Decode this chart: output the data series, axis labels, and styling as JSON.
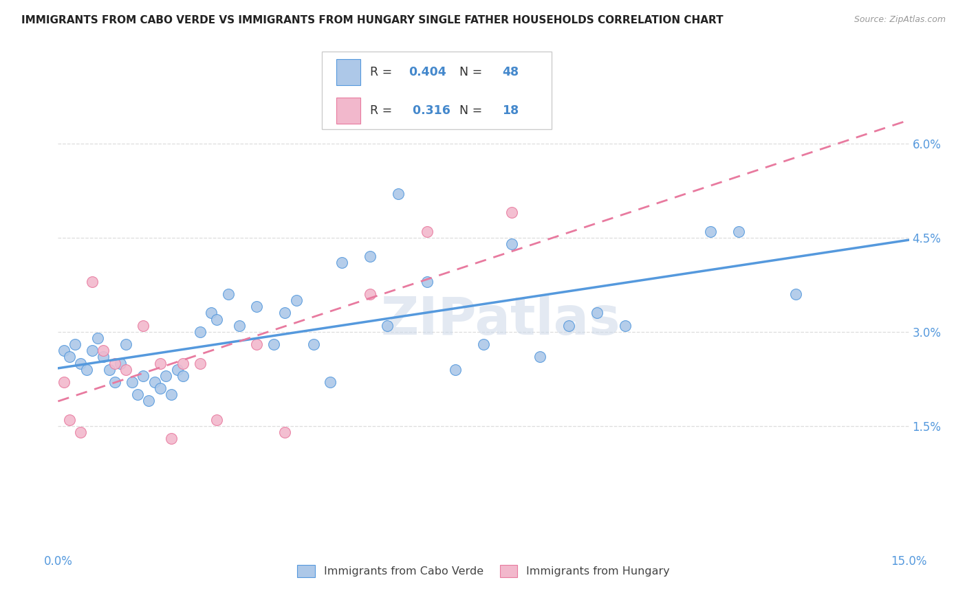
{
  "title": "IMMIGRANTS FROM CABO VERDE VS IMMIGRANTS FROM HUNGARY SINGLE FATHER HOUSEHOLDS CORRELATION CHART",
  "source": "Source: ZipAtlas.com",
  "ylabel": "Single Father Households",
  "xlim": [
    0,
    0.15
  ],
  "ylim": [
    -0.005,
    0.075
  ],
  "cabo_verde_R": "0.404",
  "cabo_verde_N": "48",
  "hungary_R": "0.316",
  "hungary_N": "18",
  "cabo_verde_color": "#adc8e8",
  "hungary_color": "#f2b8cc",
  "cabo_verde_line_color": "#5599dd",
  "hungary_line_color": "#e87a9f",
  "legend_r_color": "#4488cc",
  "cabo_verde_x": [
    0.001,
    0.002,
    0.003,
    0.004,
    0.005,
    0.006,
    0.007,
    0.008,
    0.009,
    0.01,
    0.011,
    0.012,
    0.013,
    0.014,
    0.015,
    0.016,
    0.017,
    0.018,
    0.019,
    0.02,
    0.021,
    0.022,
    0.025,
    0.027,
    0.028,
    0.03,
    0.032,
    0.035,
    0.038,
    0.04,
    0.042,
    0.045,
    0.048,
    0.05,
    0.055,
    0.058,
    0.06,
    0.065,
    0.07,
    0.075,
    0.08,
    0.085,
    0.09,
    0.095,
    0.1,
    0.115,
    0.12,
    0.13
  ],
  "cabo_verde_y": [
    0.027,
    0.026,
    0.028,
    0.025,
    0.024,
    0.027,
    0.029,
    0.026,
    0.024,
    0.022,
    0.025,
    0.028,
    0.022,
    0.02,
    0.023,
    0.019,
    0.022,
    0.021,
    0.023,
    0.02,
    0.024,
    0.023,
    0.03,
    0.033,
    0.032,
    0.036,
    0.031,
    0.034,
    0.028,
    0.033,
    0.035,
    0.028,
    0.022,
    0.041,
    0.042,
    0.031,
    0.052,
    0.038,
    0.024,
    0.028,
    0.044,
    0.026,
    0.031,
    0.033,
    0.031,
    0.046,
    0.046,
    0.036
  ],
  "hungary_x": [
    0.001,
    0.002,
    0.004,
    0.006,
    0.008,
    0.01,
    0.012,
    0.015,
    0.018,
    0.02,
    0.022,
    0.025,
    0.028,
    0.035,
    0.04,
    0.055,
    0.065,
    0.08
  ],
  "hungary_y": [
    0.022,
    0.016,
    0.014,
    0.038,
    0.027,
    0.025,
    0.024,
    0.031,
    0.025,
    0.013,
    0.025,
    0.025,
    0.016,
    0.028,
    0.014,
    0.036,
    0.046,
    0.049
  ],
  "watermark_text": "ZIPatlas",
  "grid_color": "#dddddd",
  "background_color": "#ffffff",
  "ytick_positions": [
    0.015,
    0.03,
    0.045,
    0.06
  ],
  "ytick_labels": [
    "1.5%",
    "3.0%",
    "4.5%",
    "6.0%"
  ],
  "xtick_positions": [
    0.0,
    0.03,
    0.06,
    0.09,
    0.12,
    0.15
  ],
  "tick_color": "#5599dd"
}
